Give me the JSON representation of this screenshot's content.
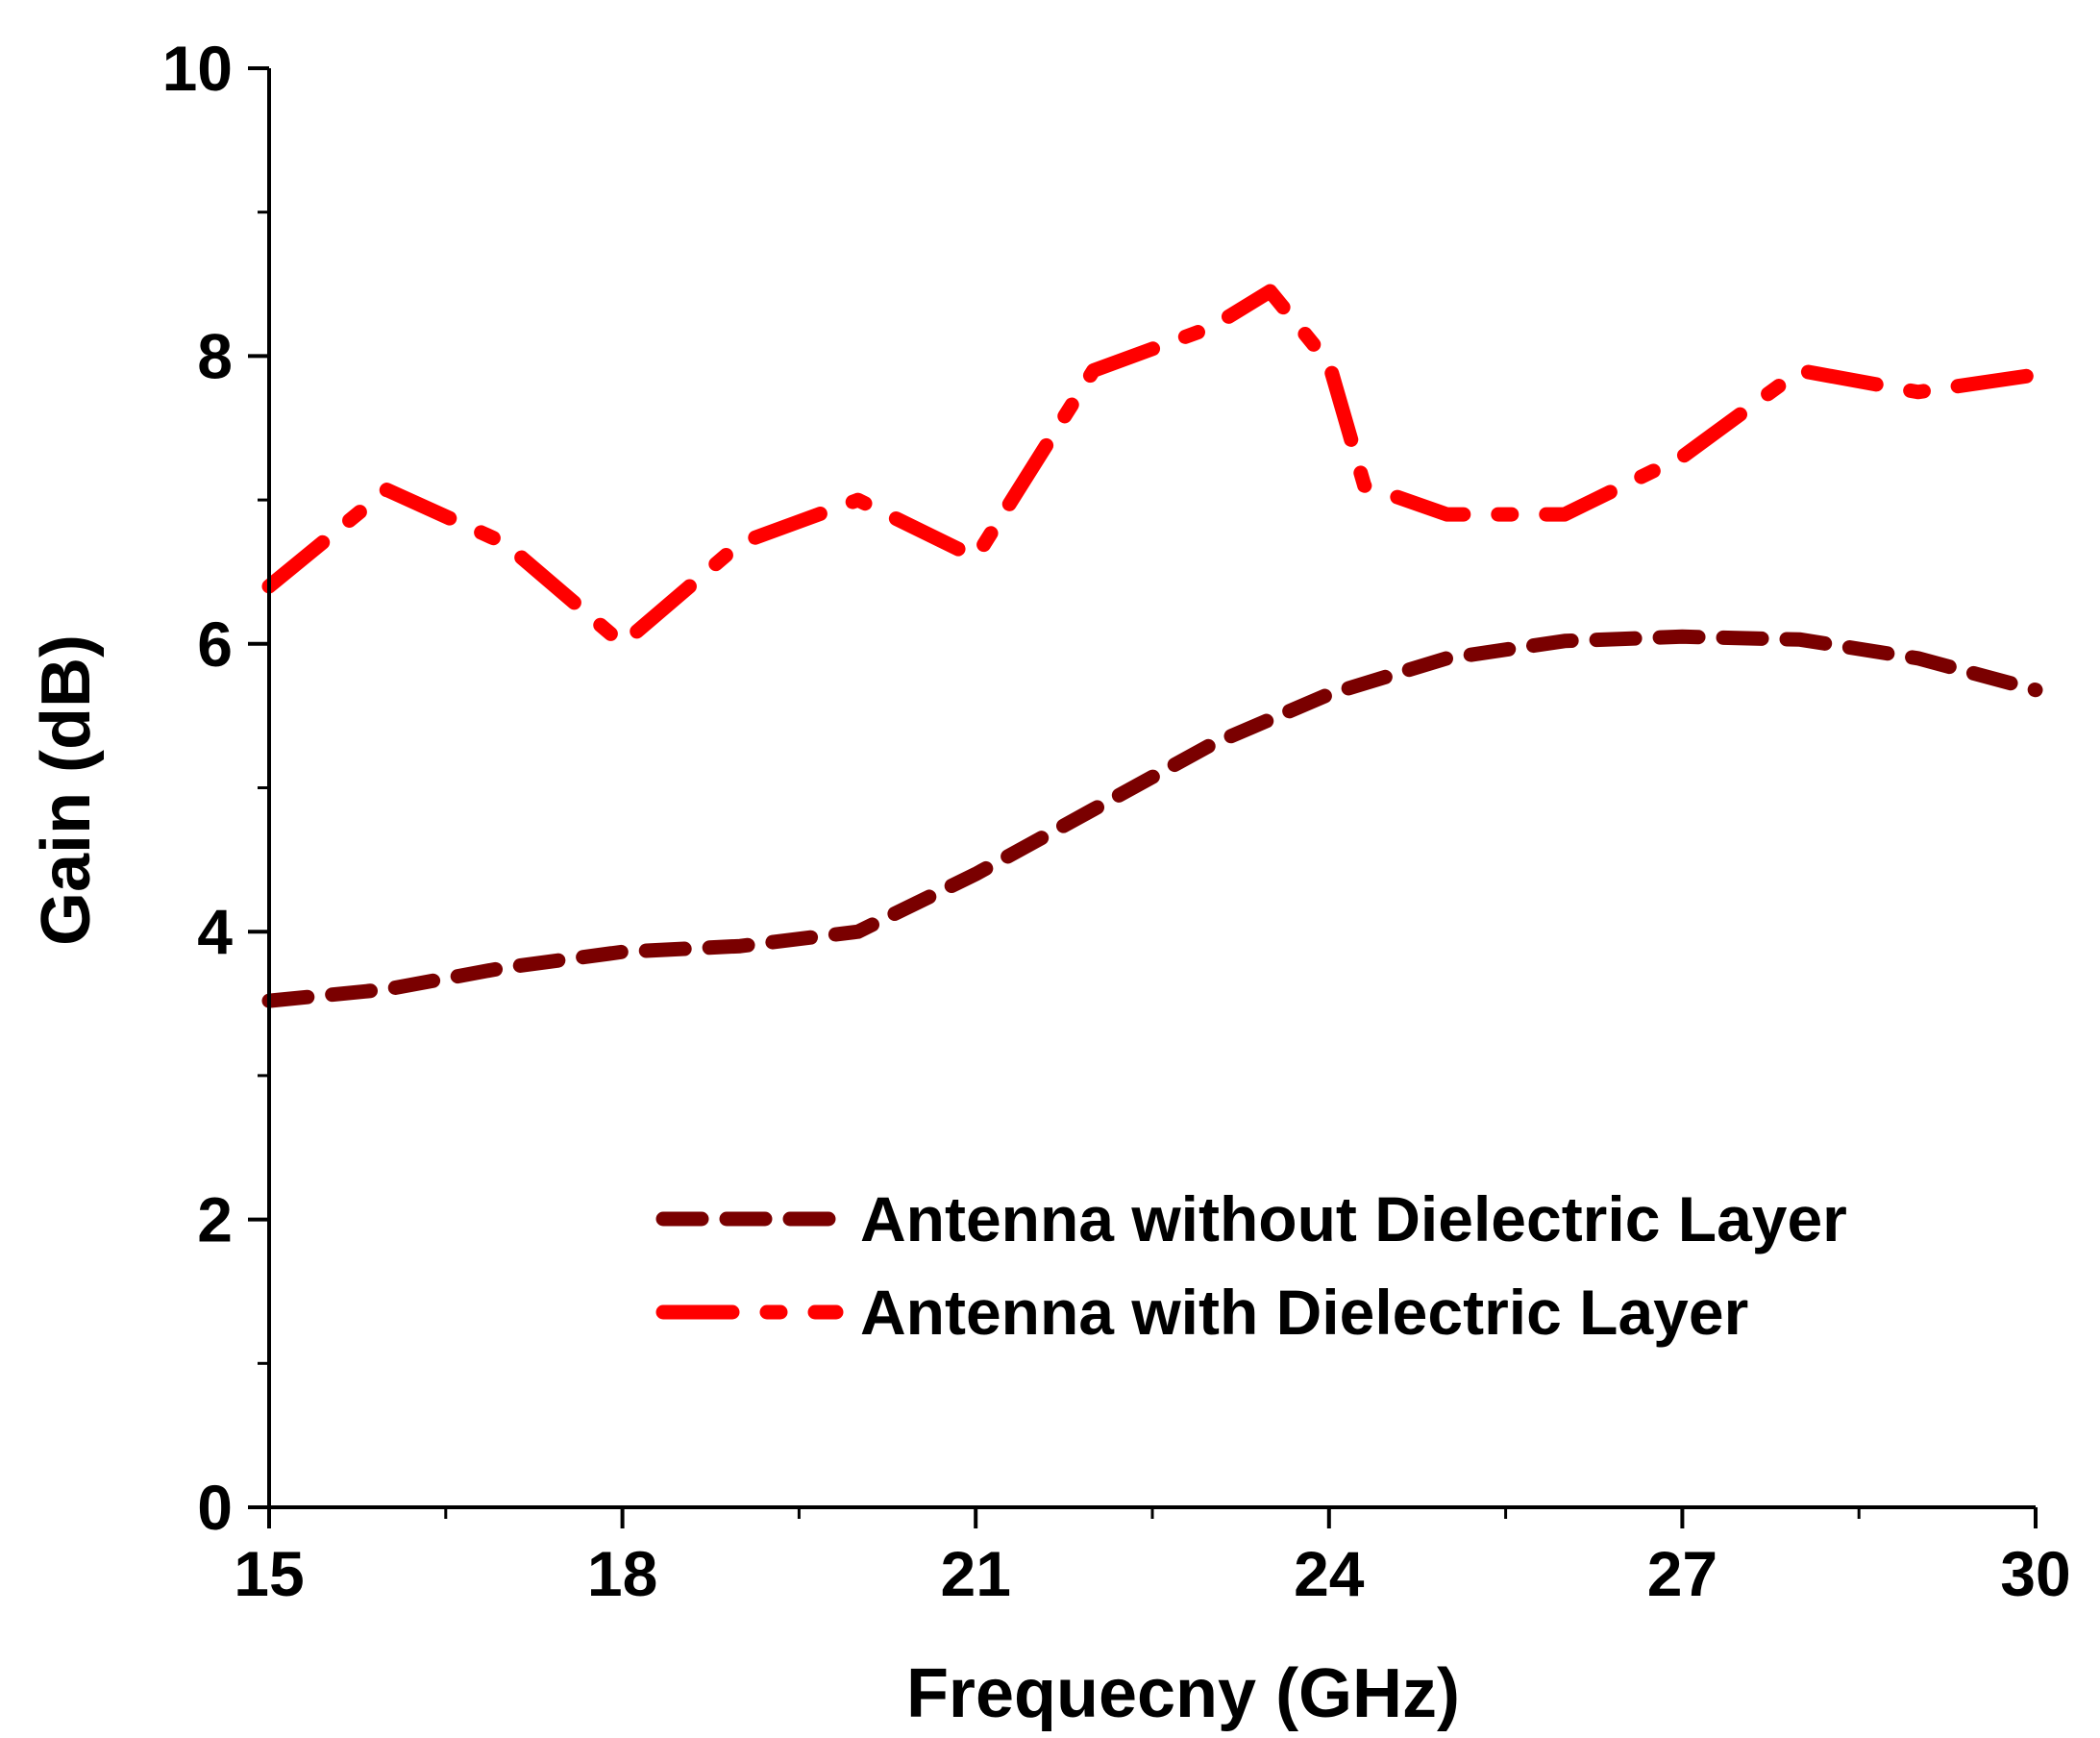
{
  "chart_data": {
    "type": "line",
    "xlabel": "Frequecny (GHz)",
    "ylabel": "Gain (dB)",
    "xlim": [
      15,
      30
    ],
    "ylim": [
      0,
      10
    ],
    "x_ticks": [
      "15",
      "18",
      "21",
      "24",
      "27",
      "30"
    ],
    "y_ticks": [
      "0",
      "2",
      "4",
      "6",
      "8",
      "10"
    ],
    "legend_position": "lower-right",
    "series": [
      {
        "name": "Antenna without Dielectric Layer",
        "color": "#7a0000",
        "style": "dash",
        "x": [
          15,
          16,
          17,
          18,
          19,
          20,
          21,
          22,
          23,
          24,
          25,
          26,
          27,
          28,
          29,
          30
        ],
        "y": [
          3.52,
          3.6,
          3.75,
          3.86,
          3.9,
          4.0,
          4.4,
          4.85,
          5.3,
          5.65,
          5.9,
          6.02,
          6.05,
          6.03,
          5.9,
          5.68
        ]
      },
      {
        "name": "Antenna with Dielectric Layer",
        "color": "#ff0000",
        "style": "dash-dot",
        "x": [
          15,
          16,
          17,
          18,
          19,
          20,
          21,
          22,
          23,
          23.5,
          24,
          24.3,
          25,
          26,
          27,
          28,
          29,
          30
        ],
        "y": [
          6.4,
          7.07,
          6.7,
          6.0,
          6.7,
          7.0,
          6.6,
          7.9,
          8.2,
          8.45,
          7.95,
          7.1,
          6.9,
          6.9,
          7.3,
          7.9,
          7.75,
          7.87
        ]
      }
    ]
  }
}
